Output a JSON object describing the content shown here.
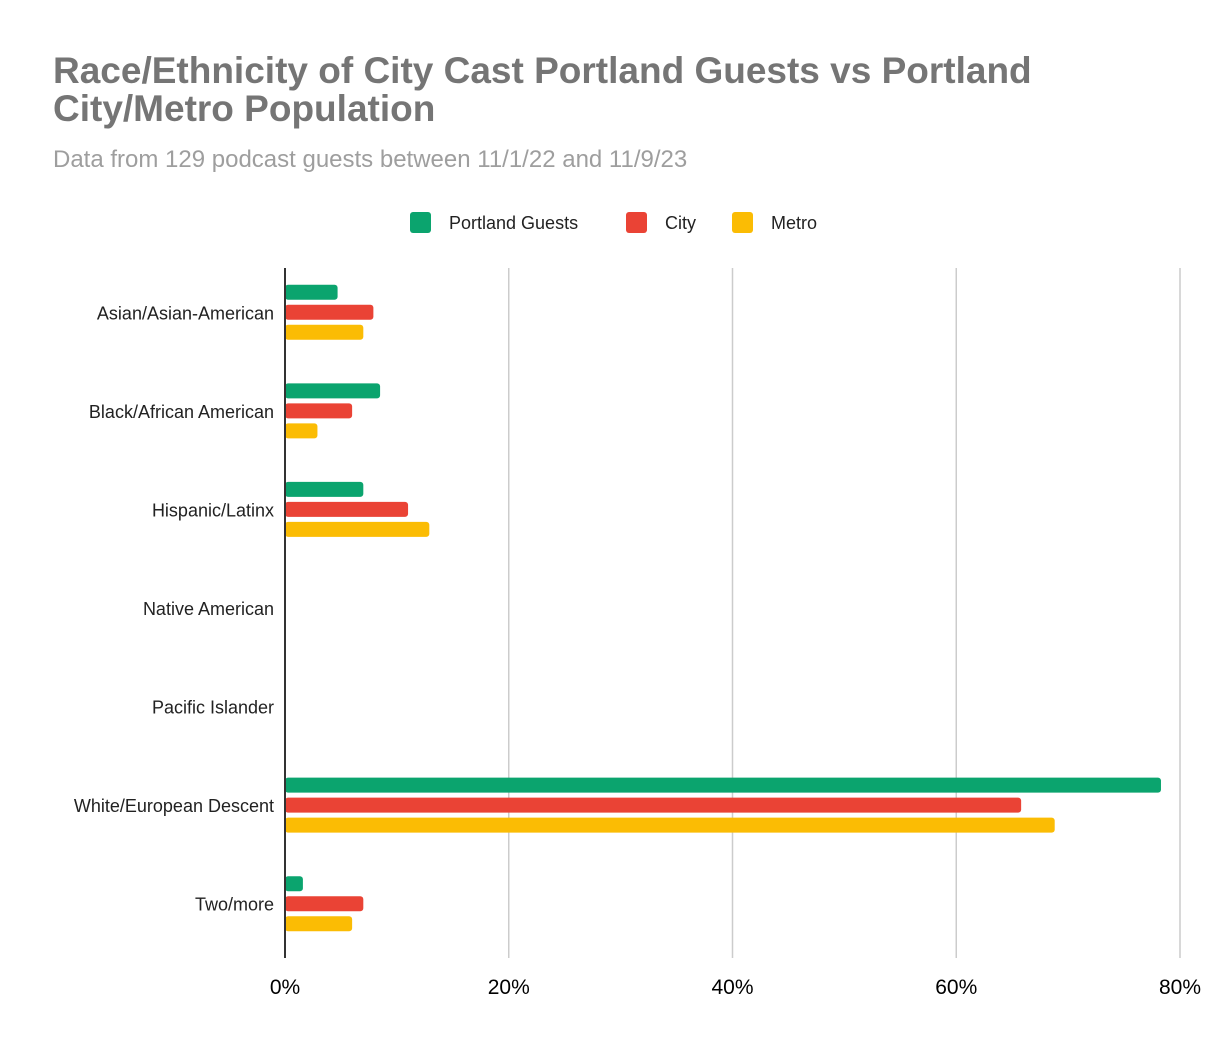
{
  "chart_data": {
    "type": "bar",
    "orientation": "horizontal",
    "title": "Race/Ethnicity of City Cast Portland Guests vs Portland City/Metro Population",
    "subtitle": "Data from 129 podcast guests between 11/1/22 and 11/9/23",
    "xlabel": "",
    "ylabel": "",
    "xlim": [
      0,
      80
    ],
    "x_ticks": [
      "0%",
      "20%",
      "40%",
      "60%",
      "80%"
    ],
    "x_tick_values": [
      0,
      20,
      40,
      60,
      80
    ],
    "grid": true,
    "legend_position": "top",
    "categories": [
      "Asian/Asian-American",
      "Black/African American",
      "Hispanic/Latinx",
      "Native American",
      "Pacific Islander",
      "White/European Descent",
      "Two/more"
    ],
    "series": [
      {
        "name": "Portland Guests",
        "color": "#0ba46e",
        "values": [
          4.7,
          8.5,
          7.0,
          0,
          0,
          78.3,
          1.6
        ]
      },
      {
        "name": "City",
        "color": "#ea4335",
        "values": [
          7.9,
          6.0,
          11.0,
          0,
          0,
          65.8,
          7.0
        ]
      },
      {
        "name": "Metro",
        "color": "#fbbc04",
        "values": [
          7.0,
          2.9,
          12.9,
          0,
          0,
          68.8,
          6.0
        ]
      }
    ]
  }
}
